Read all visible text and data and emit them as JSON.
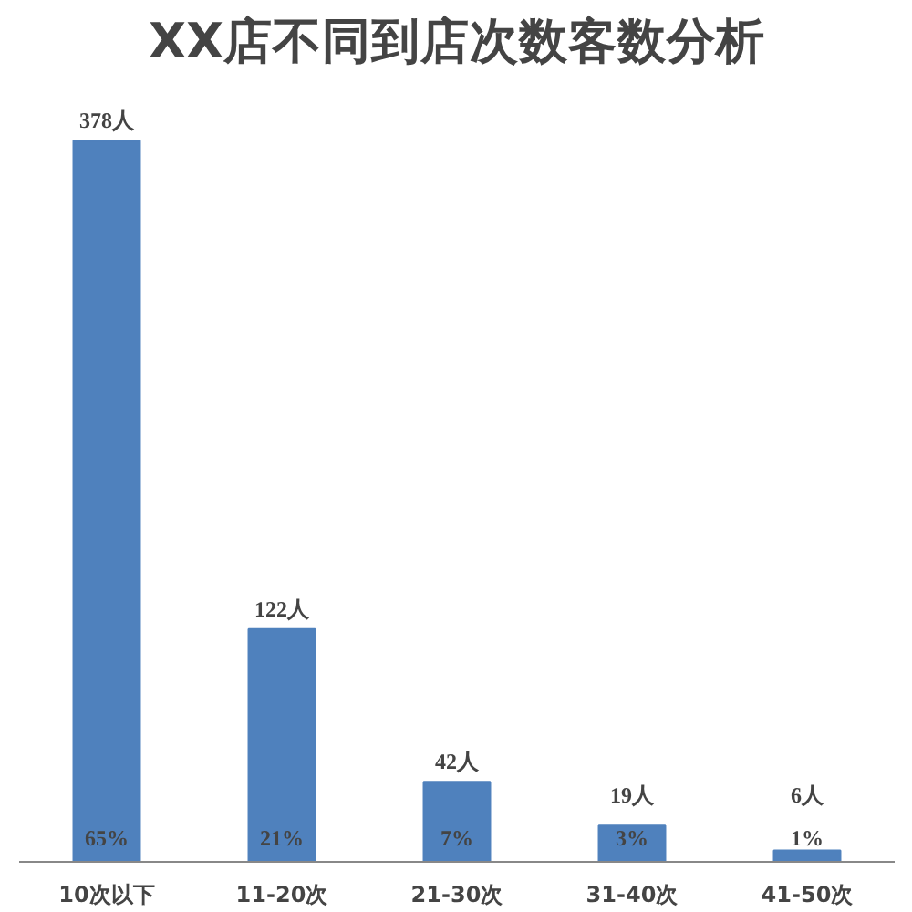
{
  "chart_data": {
    "type": "bar",
    "title": "XX店不同到店次数客数分析",
    "categories": [
      "10次以下",
      "11-20次",
      "21-30次",
      "31-40次",
      "41-50次"
    ],
    "values": [
      378,
      122,
      42,
      19,
      6
    ],
    "color": "#4f81bd",
    "value_labels": [
      "378人",
      "122人",
      "42人",
      "19人",
      "6人"
    ],
    "annotations": [
      {
        "text": "65%",
        "x": "10次以下",
        "y": 0
      },
      {
        "text": "21%",
        "x": "11-20次",
        "y": 0
      },
      {
        "text": "7%",
        "x": "21-30次",
        "y": 0
      },
      {
        "text": "3%",
        "x": "31-40次",
        "y": 0
      },
      {
        "text": "1%",
        "x": "41-50次",
        "y": 0
      }
    ],
    "grid": false
  }
}
